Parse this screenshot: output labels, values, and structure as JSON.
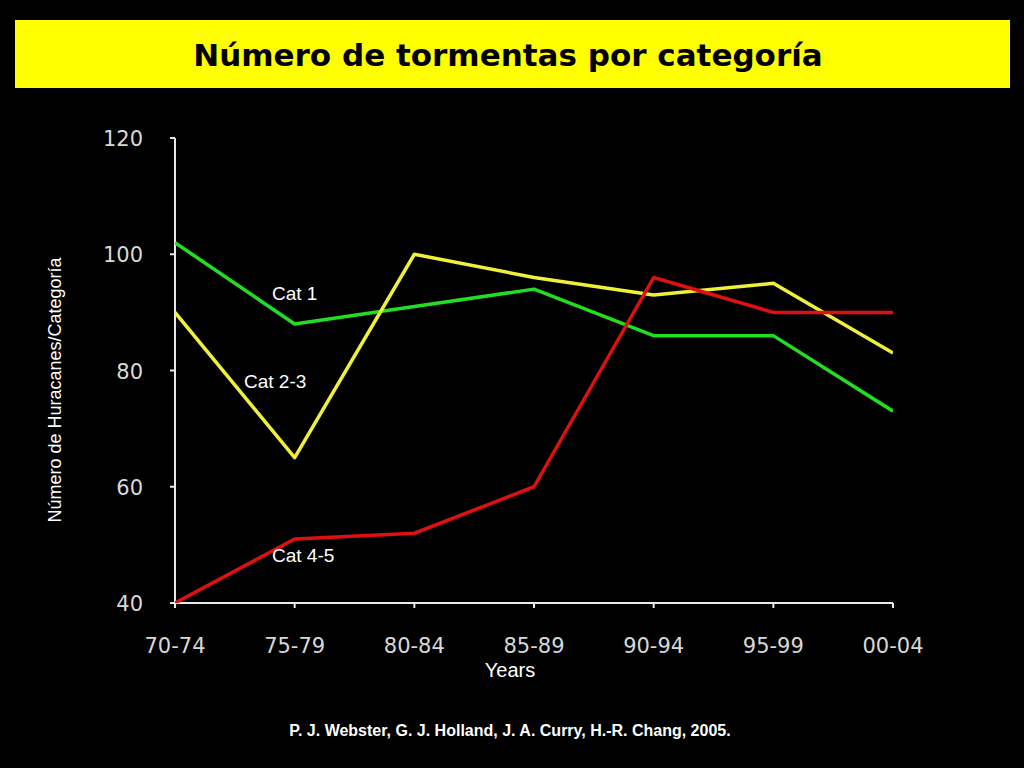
{
  "chart_data": {
    "type": "line",
    "title": "Número de tormentas por categoría",
    "y_label": "Número de Huracanes/Categoría",
    "x_label": "Years",
    "source": "P. J. Webster, G. J. Holland, J. A. Curry, H.-R. Chang, 2005.",
    "categories": [
      "70-74",
      "75-79",
      "80-84",
      "85-89",
      "90-94",
      "95-99",
      "00-04"
    ],
    "series": [
      {
        "name": "Cat 1",
        "color": "#22dd22",
        "values": [
          102,
          88,
          91,
          94,
          86,
          86,
          73
        ]
      },
      {
        "name": "Cat 2-3",
        "color": "#f0f03c",
        "values": [
          90,
          65,
          100,
          96,
          93,
          95,
          83
        ]
      },
      {
        "name": "Cat 4-5",
        "color": "#e01010",
        "values": [
          40,
          51,
          52,
          60,
          96,
          90,
          90
        ]
      }
    ],
    "ylim": [
      40,
      120
    ],
    "yticks": [
      40,
      60,
      80,
      100,
      120
    ],
    "grid": false
  }
}
